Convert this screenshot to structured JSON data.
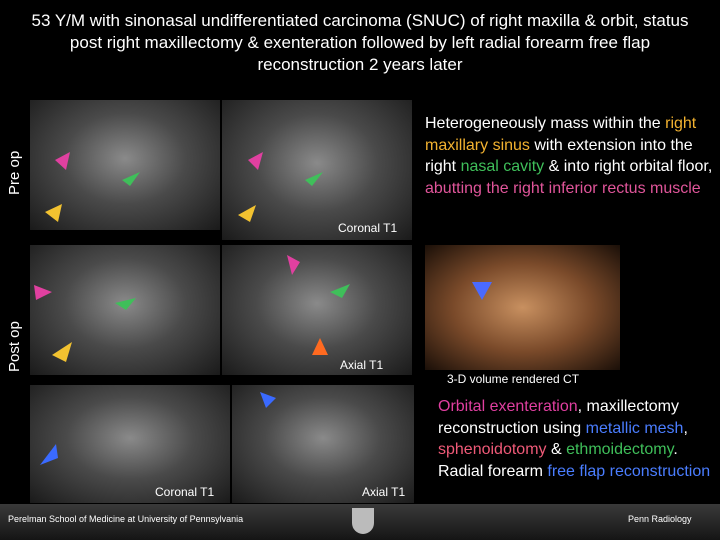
{
  "title": "53 Y/M with sinonasal undifferentiated carcinoma (SNUC) of right maxilla & orbit, status post right maxillectomy & exenteration followed by left radial forearm free flap reconstruction 2 years later",
  "side_labels": {
    "pre_op": "Pre op",
    "post_op": "Post op"
  },
  "image_labels": {
    "pre_coronal": "Coronal T1",
    "post_axial": "Axial T1",
    "ct": "3-D volume rendered CT",
    "post_coronal_2": "Coronal T1",
    "post_axial_2": "Axial T1"
  },
  "findings": [
    {
      "text": "Heterogeneously mass within the ",
      "color": "#ffffff"
    },
    {
      "text": "right maxillary sinus",
      "color": "#f2b230"
    },
    {
      "text": " with extension into the right ",
      "color": "#ffffff"
    },
    {
      "text": "nasal cavity",
      "color": "#3fbf5a"
    },
    {
      "text": " & into right orbital floor, ",
      "color": "#ffffff"
    },
    {
      "text": "abutting the right inferior rectus muscle",
      "color": "#e0559a"
    }
  ],
  "procedure": [
    {
      "text": "Orbital exenteration",
      "color": "#e03fa0"
    },
    {
      "text": ", maxillectomy reconstruction using ",
      "color": "#ffffff"
    },
    {
      "text": "metallic mesh",
      "color": "#4a7dff"
    },
    {
      "text": ", ",
      "color": "#ffffff"
    },
    {
      "text": "sphenoidotomy",
      "color": "#f05a78"
    },
    {
      "text": " & ",
      "color": "#ffffff"
    },
    {
      "text": "ethmoidectomy",
      "color": "#3fbf5a"
    },
    {
      "text": ". Radial forearm ",
      "color": "#ffffff"
    },
    {
      "text": "free flap reconstruction",
      "color": "#4a7dff"
    }
  ],
  "footer": {
    "left": "Perelman School of Medicine at University of Pennsylvania",
    "right": "Penn Radiology"
  }
}
